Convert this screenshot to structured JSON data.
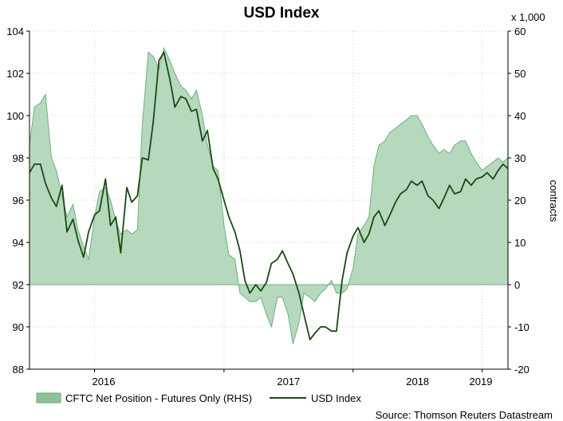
{
  "chart_data": {
    "type": "line",
    "title": "USD Index",
    "multiplier_label": "x 1,000",
    "y2label": "contracts",
    "x_ticks": [
      "2016",
      "2017",
      "2018",
      "2019"
    ],
    "x_tick_dates": [
      "2016-01-01",
      "2017-01-01",
      "2018-01-01",
      "2019-01-01"
    ],
    "x_range": [
      "2015-07-01",
      "2019-03-15"
    ],
    "y_left": {
      "min": 88,
      "max": 104,
      "ticks": [
        88,
        90,
        92,
        94,
        96,
        98,
        100,
        102,
        104
      ]
    },
    "y_right": {
      "min": -20,
      "max": 60,
      "ticks": [
        -20,
        -10,
        0,
        10,
        20,
        30,
        40,
        50,
        60
      ]
    },
    "grid": true,
    "legend_position": "bottom-left",
    "legend": [
      "CFTC Net Position - Futures Only (RHS)",
      "USD Index"
    ],
    "source": "Source: Thomson Reuters Datastream",
    "series": [
      {
        "name": "CFTC Net Position - Futures Only (RHS)",
        "type": "area",
        "axis": "right",
        "color": "#8cc19a",
        "points": [
          [
            "2015-07-01",
            33
          ],
          [
            "2015-07-15",
            42
          ],
          [
            "2015-08-01",
            43
          ],
          [
            "2015-08-15",
            45
          ],
          [
            "2015-09-01",
            30
          ],
          [
            "2015-09-15",
            27
          ],
          [
            "2015-10-01",
            21
          ],
          [
            "2015-10-15",
            16
          ],
          [
            "2015-11-01",
            19
          ],
          [
            "2015-11-15",
            13
          ],
          [
            "2015-12-01",
            9
          ],
          [
            "2015-12-15",
            6
          ],
          [
            "2016-01-01",
            16
          ],
          [
            "2016-01-15",
            22
          ],
          [
            "2016-02-01",
            23
          ],
          [
            "2016-02-15",
            20
          ],
          [
            "2016-03-01",
            15
          ],
          [
            "2016-03-15",
            12
          ],
          [
            "2016-04-01",
            13
          ],
          [
            "2016-04-15",
            12
          ],
          [
            "2016-05-01",
            13
          ],
          [
            "2016-05-15",
            38
          ],
          [
            "2016-06-01",
            55
          ],
          [
            "2016-06-15",
            54
          ],
          [
            "2016-07-01",
            51
          ],
          [
            "2016-07-15",
            56
          ],
          [
            "2016-08-01",
            53
          ],
          [
            "2016-08-15",
            50
          ],
          [
            "2016-09-01",
            47
          ],
          [
            "2016-09-15",
            46
          ],
          [
            "2016-10-01",
            44
          ],
          [
            "2016-10-15",
            46
          ],
          [
            "2016-11-01",
            40
          ],
          [
            "2016-11-15",
            33
          ],
          [
            "2016-12-01",
            28
          ],
          [
            "2016-12-15",
            27
          ],
          [
            "2017-01-01",
            14
          ],
          [
            "2017-01-15",
            7
          ],
          [
            "2017-02-01",
            6
          ],
          [
            "2017-02-15",
            -2
          ],
          [
            "2017-03-01",
            -3
          ],
          [
            "2017-03-15",
            -4
          ],
          [
            "2017-04-01",
            -4
          ],
          [
            "2017-04-15",
            -3
          ],
          [
            "2017-05-01",
            -7
          ],
          [
            "2017-05-15",
            -10
          ],
          [
            "2017-06-01",
            -3
          ],
          [
            "2017-06-15",
            -3
          ],
          [
            "2017-07-01",
            -7
          ],
          [
            "2017-07-15",
            -14
          ],
          [
            "2017-08-01",
            -9
          ],
          [
            "2017-08-15",
            -2
          ],
          [
            "2017-09-01",
            -3
          ],
          [
            "2017-09-15",
            -4
          ],
          [
            "2017-10-01",
            -2
          ],
          [
            "2017-10-15",
            -1
          ],
          [
            "2017-11-01",
            1
          ],
          [
            "2017-11-15",
            -2
          ],
          [
            "2017-12-01",
            -2
          ],
          [
            "2017-12-15",
            -1
          ],
          [
            "2018-01-01",
            4
          ],
          [
            "2018-01-15",
            12
          ],
          [
            "2018-02-01",
            14
          ],
          [
            "2018-02-15",
            16
          ],
          [
            "2018-03-01",
            28
          ],
          [
            "2018-03-15",
            33
          ],
          [
            "2018-04-01",
            34
          ],
          [
            "2018-04-15",
            36
          ],
          [
            "2018-05-01",
            37
          ],
          [
            "2018-05-15",
            38
          ],
          [
            "2018-06-01",
            39
          ],
          [
            "2018-06-15",
            40
          ],
          [
            "2018-07-01",
            40
          ],
          [
            "2018-07-15",
            38
          ],
          [
            "2018-08-01",
            35
          ],
          [
            "2018-08-15",
            33
          ],
          [
            "2018-09-01",
            31
          ],
          [
            "2018-09-15",
            32
          ],
          [
            "2018-10-01",
            31
          ],
          [
            "2018-10-15",
            33
          ],
          [
            "2018-11-01",
            34
          ],
          [
            "2018-11-15",
            34
          ],
          [
            "2018-12-01",
            31
          ],
          [
            "2018-12-15",
            29
          ],
          [
            "2019-01-01",
            27
          ],
          [
            "2019-01-15",
            28
          ],
          [
            "2019-02-01",
            29
          ],
          [
            "2019-02-15",
            30
          ],
          [
            "2019-03-01",
            29
          ],
          [
            "2019-03-15",
            30
          ]
        ]
      },
      {
        "name": "USD Index",
        "type": "line",
        "axis": "left",
        "color": "#1a4a12",
        "points": [
          [
            "2015-07-01",
            97.3
          ],
          [
            "2015-07-15",
            97.7
          ],
          [
            "2015-08-01",
            97.7
          ],
          [
            "2015-08-15",
            96.8
          ],
          [
            "2015-09-01",
            96.1
          ],
          [
            "2015-09-15",
            95.7
          ],
          [
            "2015-10-01",
            96.7
          ],
          [
            "2015-10-15",
            94.5
          ],
          [
            "2015-11-01",
            95.1
          ],
          [
            "2015-11-15",
            94.1
          ],
          [
            "2015-12-01",
            93.3
          ],
          [
            "2015-12-15",
            94.5
          ],
          [
            "2016-01-01",
            95.3
          ],
          [
            "2016-01-15",
            95.5
          ],
          [
            "2016-02-01",
            97.0
          ],
          [
            "2016-02-15",
            94.8
          ],
          [
            "2016-03-01",
            95.2
          ],
          [
            "2016-03-15",
            93.5
          ],
          [
            "2016-04-01",
            96.6
          ],
          [
            "2016-04-15",
            95.9
          ],
          [
            "2016-05-01",
            96.2
          ],
          [
            "2016-05-15",
            98.0
          ],
          [
            "2016-06-01",
            97.9
          ],
          [
            "2016-06-15",
            99.7
          ],
          [
            "2016-07-01",
            102.6
          ],
          [
            "2016-07-15",
            103.0
          ],
          [
            "2016-08-01",
            101.7
          ],
          [
            "2016-08-15",
            100.4
          ],
          [
            "2016-09-01",
            100.9
          ],
          [
            "2016-09-15",
            100.8
          ],
          [
            "2016-10-01",
            100.2
          ],
          [
            "2016-10-15",
            100.3
          ],
          [
            "2016-11-01",
            98.8
          ],
          [
            "2016-11-15",
            99.3
          ],
          [
            "2016-12-01",
            97.5
          ],
          [
            "2016-12-15",
            97.0
          ],
          [
            "2017-01-01",
            96.0
          ],
          [
            "2017-01-15",
            95.2
          ],
          [
            "2017-02-01",
            94.5
          ],
          [
            "2017-02-15",
            93.6
          ],
          [
            "2017-03-01",
            92.2
          ],
          [
            "2017-03-15",
            91.6
          ],
          [
            "2017-04-01",
            92.0
          ],
          [
            "2017-04-15",
            91.7
          ],
          [
            "2017-05-01",
            92.1
          ],
          [
            "2017-05-15",
            93.0
          ],
          [
            "2017-06-01",
            93.2
          ],
          [
            "2017-06-15",
            93.6
          ],
          [
            "2017-07-01",
            93.0
          ],
          [
            "2017-07-15",
            92.5
          ],
          [
            "2017-08-01",
            91.6
          ],
          [
            "2017-08-15",
            90.6
          ],
          [
            "2017-09-01",
            89.4
          ],
          [
            "2017-09-15",
            89.7
          ],
          [
            "2017-10-01",
            90.0
          ],
          [
            "2017-10-15",
            90.0
          ],
          [
            "2017-11-01",
            89.8
          ],
          [
            "2017-11-15",
            89.8
          ],
          [
            "2017-12-01",
            92.2
          ],
          [
            "2017-12-15",
            93.5
          ],
          [
            "2018-01-01",
            94.3
          ],
          [
            "2018-01-15",
            94.7
          ],
          [
            "2018-02-01",
            94.0
          ],
          [
            "2018-02-15",
            94.4
          ],
          [
            "2018-03-01",
            95.2
          ],
          [
            "2018-03-15",
            95.5
          ],
          [
            "2018-04-01",
            94.8
          ],
          [
            "2018-04-15",
            95.3
          ],
          [
            "2018-05-01",
            95.9
          ],
          [
            "2018-05-15",
            96.3
          ],
          [
            "2018-06-01",
            96.5
          ],
          [
            "2018-06-15",
            96.9
          ],
          [
            "2018-07-01",
            96.7
          ],
          [
            "2018-07-15",
            96.9
          ],
          [
            "2018-08-01",
            96.2
          ],
          [
            "2018-08-15",
            96.0
          ],
          [
            "2018-09-01",
            95.6
          ],
          [
            "2018-09-15",
            96.1
          ],
          [
            "2018-10-01",
            96.7
          ],
          [
            "2018-10-15",
            96.3
          ],
          [
            "2018-11-01",
            96.4
          ],
          [
            "2018-11-15",
            97.0
          ],
          [
            "2018-12-01",
            96.7
          ],
          [
            "2018-12-15",
            97.0
          ],
          [
            "2019-01-01",
            97.1
          ],
          [
            "2019-01-15",
            97.3
          ],
          [
            "2019-02-01",
            97.0
          ],
          [
            "2019-02-15",
            97.4
          ],
          [
            "2019-03-01",
            97.7
          ],
          [
            "2019-03-15",
            97.5
          ]
        ]
      }
    ]
  }
}
